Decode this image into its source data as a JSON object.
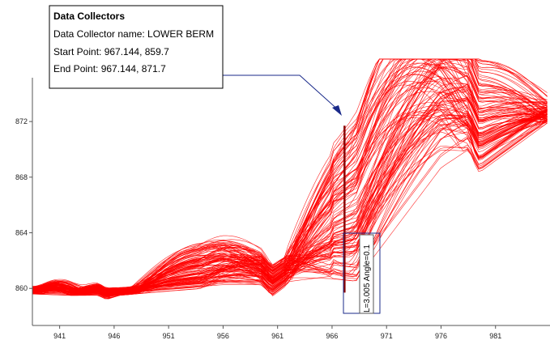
{
  "chart_data": {
    "type": "line",
    "title": "",
    "xlabel": "",
    "ylabel": "",
    "xlim": [
      938.5,
      986
    ],
    "ylim": [
      857.8,
      875.5
    ],
    "x_ticks": [
      941,
      946,
      951,
      956,
      961,
      966,
      971,
      976,
      981
    ],
    "x_tick_labels": [
      "941",
      "946",
      "951",
      "956",
      "961",
      "966",
      "971",
      "976",
      "981"
    ],
    "y_ticks": [
      860,
      864,
      868,
      872
    ],
    "y_tick_labels": [
      "860",
      "864",
      "868",
      "872"
    ],
    "grid": false,
    "legend": "none",
    "series_color": "#ff0000",
    "series_count": 120,
    "base_profile": {
      "x": [
        938.5,
        942,
        944.5,
        945.3,
        946.5,
        951,
        956,
        959.5,
        960.5,
        962,
        966,
        968.3,
        976,
        978.5,
        979.5,
        986
      ],
      "y": [
        859.6,
        859.5,
        859.5,
        859.2,
        859.5,
        859.8,
        860.1,
        860.1,
        859.4,
        860.3,
        860.7,
        860.5,
        868.5,
        869.8,
        868.3,
        872.0
      ]
    },
    "arc_families": [
      {
        "x_start": 939,
        "x_end": 942.5,
        "rise_range": [
          0.2,
          0.6
        ]
      },
      {
        "x_start": 943,
        "x_end": 946.5,
        "rise_range": [
          0.1,
          0.4
        ]
      },
      {
        "x_start": 948,
        "x_end": 960,
        "rise_range": [
          0.3,
          2.9
        ]
      },
      {
        "x_start": 954,
        "x_end": 966.5,
        "rise_range": [
          0.5,
          2.0
        ]
      },
      {
        "x_start": 962,
        "x_end": 978.5,
        "rise_range": [
          1.5,
          12.0
        ]
      },
      {
        "x_start": 968,
        "x_end": 986,
        "rise_range": [
          1.0,
          8.0
        ]
      }
    ]
  },
  "data_collector_line": {
    "x": 967.144,
    "y_start": 859.7,
    "y_end": 871.7,
    "color": "#8b0000",
    "label": "L=3.005 Angle=0.1"
  },
  "callout": {
    "title": "Data Collectors",
    "name_line": "Data Collector name: LOWER BERM",
    "start_line": "Start Point: 967.144, 859.7",
    "end_line": "End  Point: 967.144, 871.7",
    "arrow_color": "#1a2a8a"
  },
  "axis_color": "#555555"
}
